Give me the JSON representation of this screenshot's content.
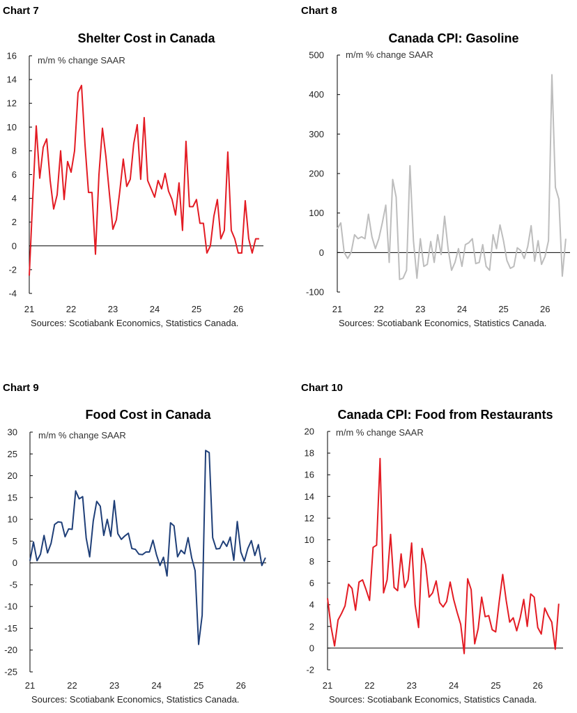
{
  "chart_data": [
    {
      "type": "line",
      "label": "Chart 7",
      "title": "Shelter Cost in Canada",
      "unit_note": "m/m % change SAAR",
      "source": "Sources: Scotiabank Economics, Statistics Canada.",
      "color": "#e31b23",
      "x_start": 2021.0,
      "x_step": 0.0833,
      "xlim": [
        2021,
        2026.6
      ],
      "x_tick_labels": [
        "21",
        "22",
        "23",
        "24",
        "25",
        "26"
      ],
      "ylim": [
        -4,
        16
      ],
      "y_ticks": [
        -4,
        -2,
        0,
        2,
        4,
        6,
        8,
        10,
        12,
        14,
        16
      ],
      "values": [
        -2.5,
        4.0,
        10.1,
        5.7,
        8.3,
        9.0,
        5.5,
        3.1,
        4.3,
        8.0,
        3.9,
        7.1,
        6.2,
        8.0,
        12.9,
        13.5,
        8.5,
        4.5,
        4.5,
        -0.7,
        6.0,
        9.9,
        7.5,
        4.4,
        1.4,
        2.2,
        4.6,
        7.3,
        5.0,
        5.6,
        8.6,
        10.2,
        5.6,
        10.8,
        5.5,
        4.8,
        4.1,
        5.5,
        4.8,
        6.1,
        4.6,
        3.9,
        2.6,
        5.3,
        1.3,
        8.8,
        3.3,
        3.3,
        3.9,
        1.9,
        1.9,
        -0.6,
        0.0,
        2.5,
        3.9,
        0.6,
        1.3,
        7.9,
        1.3,
        0.6,
        -0.6,
        -0.6,
        3.8,
        0.6,
        -0.6,
        0.6,
        0.6
      ]
    },
    {
      "type": "line",
      "label": "Chart 8",
      "title": "Canada CPI: Gasoline",
      "unit_note": "m/m % change SAAR",
      "source": "Sources: Scotiabank Economics, Statistics Canada.",
      "color": "#bdbdbd",
      "x_start": 2021.0,
      "x_step": 0.0833,
      "xlim": [
        2021,
        2026.6
      ],
      "x_tick_labels": [
        "21",
        "22",
        "23",
        "24",
        "25",
        "26"
      ],
      "ylim": [
        -100,
        500
      ],
      "y_ticks": [
        -100,
        0,
        100,
        200,
        300,
        400,
        500
      ],
      "values": [
        60,
        75,
        0,
        -15,
        0,
        45,
        35,
        40,
        35,
        97,
        40,
        10,
        35,
        75,
        120,
        -25,
        185,
        140,
        -68,
        -65,
        -45,
        220,
        30,
        -65,
        35,
        -35,
        -30,
        28,
        -25,
        45,
        -5,
        92,
        10,
        -45,
        -25,
        10,
        -35,
        20,
        25,
        35,
        -28,
        -25,
        20,
        -35,
        -45,
        45,
        10,
        70,
        30,
        -20,
        -40,
        -35,
        12,
        5,
        -15,
        15,
        68,
        -22,
        30,
        -30,
        -10,
        30,
        450,
        165,
        135,
        -60,
        35
      ]
    },
    {
      "type": "line",
      "label": "Chart 9",
      "title": "Food Cost in Canada",
      "unit_note": "m/m % change SAAR",
      "source": "Sources: Scotiabank Economics, Statistics Canada.",
      "color": "#1f3f78",
      "x_start": 2021.0,
      "x_step": 0.0833,
      "xlim": [
        2021,
        2026.6
      ],
      "x_tick_labels": [
        "21",
        "22",
        "23",
        "24",
        "25",
        "26"
      ],
      "ylim": [
        -25,
        30
      ],
      "y_ticks": [
        -25,
        -20,
        -15,
        -10,
        -5,
        0,
        5,
        10,
        15,
        20,
        25,
        30
      ],
      "values": [
        0.5,
        4.8,
        0.5,
        2.0,
        6.3,
        2.3,
        4.5,
        8.8,
        9.4,
        9.3,
        6.0,
        7.8,
        7.7,
        16.5,
        14.7,
        15.2,
        5.7,
        1.4,
        9.6,
        14.1,
        13.0,
        6.3,
        10.0,
        6.1,
        14.3,
        6.7,
        5.4,
        6.2,
        6.8,
        3.3,
        3.1,
        2.0,
        1.9,
        2.5,
        2.5,
        5.2,
        1.9,
        -0.6,
        1.3,
        -3.0,
        9.2,
        8.5,
        1.4,
        2.9,
        2.1,
        5.8,
        1.2,
        -1.8,
        -18.7,
        -12.0,
        25.8,
        25.3,
        5.8,
        3.2,
        3.3,
        5.0,
        3.8,
        5.9,
        0.6,
        9.5,
        2.5,
        0.4,
        3.3,
        5.1,
        1.7,
        4.2,
        -0.6,
        1.2
      ]
    },
    {
      "type": "line",
      "label": "Chart 10",
      "title": "Canada CPI: Food from Restaurants",
      "unit_note": "m/m % change SAAR",
      "source": "Sources: Scotiabank Economics, Statistics Canada.",
      "color": "#e31b23",
      "x_start": 2021.0,
      "x_step": 0.0833,
      "xlim": [
        2021,
        2026.6
      ],
      "x_tick_labels": [
        "21",
        "22",
        "23",
        "24",
        "25",
        "26"
      ],
      "ylim": [
        -2,
        20
      ],
      "y_ticks": [
        -2,
        0,
        2,
        4,
        6,
        8,
        10,
        12,
        14,
        16,
        18,
        20
      ],
      "values": [
        4.6,
        2.0,
        0.2,
        2.6,
        3.2,
        3.9,
        5.9,
        5.5,
        3.5,
        6.1,
        6.3,
        5.4,
        4.4,
        9.3,
        9.5,
        17.5,
        5.1,
        6.3,
        10.5,
        5.6,
        5.3,
        8.7,
        5.6,
        6.3,
        9.7,
        4.0,
        1.9,
        9.2,
        7.7,
        4.7,
        5.1,
        6.2,
        4.2,
        3.8,
        4.3,
        6.1,
        4.5,
        3.3,
        2.2,
        -0.5,
        6.4,
        5.4,
        0.4,
        1.8,
        4.7,
        2.9,
        3.0,
        1.7,
        1.5,
        4.3,
        6.8,
        4.4,
        2.4,
        2.8,
        1.6,
        2.8,
        4.5,
        2.0,
        5.0,
        4.7,
        1.9,
        1.3,
        3.7,
        3.0,
        2.4,
        -0.1,
        4.1
      ]
    }
  ]
}
